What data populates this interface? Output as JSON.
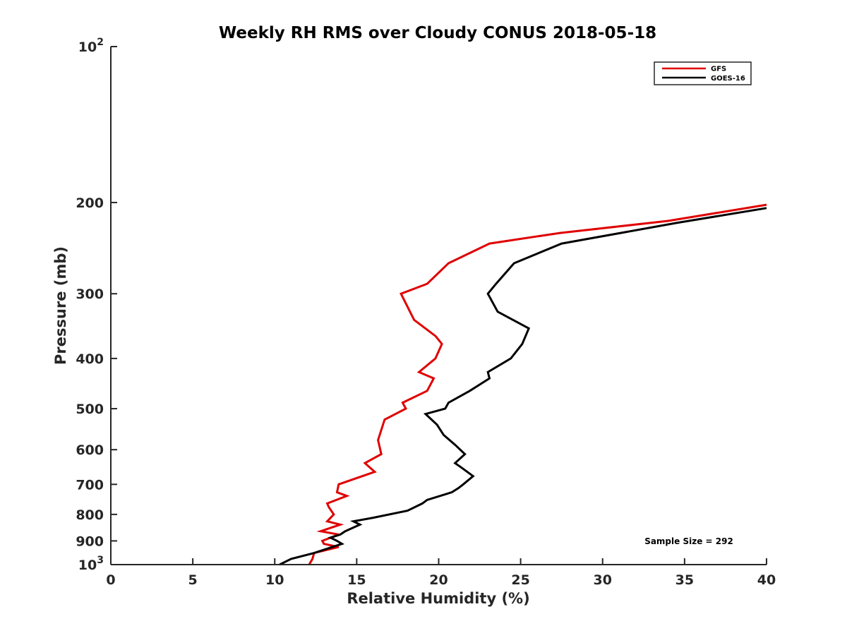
{
  "chart_data": {
    "type": "line",
    "title": "Weekly RH RMS over Cloudy CONUS 2018-05-18",
    "xlabel": "Relative Humidity (%)",
    "ylabel": "Pressure (mb)",
    "xlim": [
      0,
      40
    ],
    "ylim": [
      1000,
      100
    ],
    "yscale": "log",
    "y_reversed": true,
    "grid": false,
    "legend_position": "top-right",
    "xticks": [
      "0",
      "5",
      "10",
      "15",
      "20",
      "25",
      "30",
      "35",
      "40"
    ],
    "xtick_values": [
      0,
      5,
      10,
      15,
      20,
      25,
      30,
      35,
      40
    ],
    "yticks": [
      {
        "value": 100,
        "base": "10",
        "exp": "2"
      },
      {
        "value": 200,
        "label": "200"
      },
      {
        "value": 300,
        "label": "300"
      },
      {
        "value": 400,
        "label": "400"
      },
      {
        "value": 500,
        "label": "500"
      },
      {
        "value": 600,
        "label": "600"
      },
      {
        "value": 700,
        "label": "700"
      },
      {
        "value": 800,
        "label": "800"
      },
      {
        "value": 900,
        "label": "900"
      },
      {
        "value": 1000,
        "base": "10",
        "exp": "3"
      }
    ],
    "annotation": "Sample Size = 292",
    "series": [
      {
        "name": "GFS",
        "color": "#e00000",
        "points": [
          [
            12.1,
            1000
          ],
          [
            12.3,
            975
          ],
          [
            12.4,
            950
          ],
          [
            13.9,
            925
          ],
          [
            13.0,
            912
          ],
          [
            12.9,
            900
          ],
          [
            13.9,
            875
          ],
          [
            12.8,
            862
          ],
          [
            14.0,
            837
          ],
          [
            13.2,
            825
          ],
          [
            13.6,
            800
          ],
          [
            13.3,
            775
          ],
          [
            13.2,
            762
          ],
          [
            14.4,
            737
          ],
          [
            13.8,
            725
          ],
          [
            13.9,
            700
          ],
          [
            16.1,
            662
          ],
          [
            15.5,
            637
          ],
          [
            16.5,
            612
          ],
          [
            16.3,
            575
          ],
          [
            16.7,
            525
          ],
          [
            18.0,
            500
          ],
          [
            17.8,
            487
          ],
          [
            19.3,
            462
          ],
          [
            19.7,
            437
          ],
          [
            18.8,
            425
          ],
          [
            19.8,
            400
          ],
          [
            20.2,
            375
          ],
          [
            19.8,
            362
          ],
          [
            18.5,
            337
          ],
          [
            17.7,
            300
          ],
          [
            19.3,
            287
          ],
          [
            20.6,
            262
          ],
          [
            23.1,
            240
          ],
          [
            27.4,
            229
          ],
          [
            34.0,
            217
          ],
          [
            40.0,
            202
          ]
        ]
      },
      {
        "name": "GOES-16",
        "color": "#000000",
        "points": [
          [
            10.3,
            1000
          ],
          [
            11.0,
            975
          ],
          [
            12.4,
            950
          ],
          [
            14.1,
            912
          ],
          [
            13.8,
            900
          ],
          [
            13.4,
            887
          ],
          [
            14.0,
            875
          ],
          [
            14.3,
            862
          ],
          [
            15.2,
            837
          ],
          [
            14.8,
            825
          ],
          [
            16.0,
            812
          ],
          [
            18.1,
            787
          ],
          [
            19.0,
            762
          ],
          [
            19.3,
            750
          ],
          [
            20.8,
            725
          ],
          [
            21.2,
            712
          ],
          [
            21.5,
            700
          ],
          [
            22.1,
            675
          ],
          [
            21.4,
            650
          ],
          [
            21.0,
            637
          ],
          [
            21.6,
            612
          ],
          [
            21.0,
            587
          ],
          [
            20.3,
            562
          ],
          [
            19.9,
            537
          ],
          [
            19.2,
            512
          ],
          [
            20.4,
            500
          ],
          [
            20.6,
            487
          ],
          [
            21.9,
            462
          ],
          [
            23.1,
            437
          ],
          [
            23.0,
            425
          ],
          [
            24.4,
            400
          ],
          [
            25.1,
            375
          ],
          [
            25.5,
            350
          ],
          [
            23.6,
            325
          ],
          [
            23.0,
            300
          ],
          [
            23.5,
            287
          ],
          [
            24.6,
            262
          ],
          [
            27.5,
            240
          ],
          [
            34.5,
            219
          ],
          [
            40.0,
            205
          ]
        ]
      }
    ]
  }
}
